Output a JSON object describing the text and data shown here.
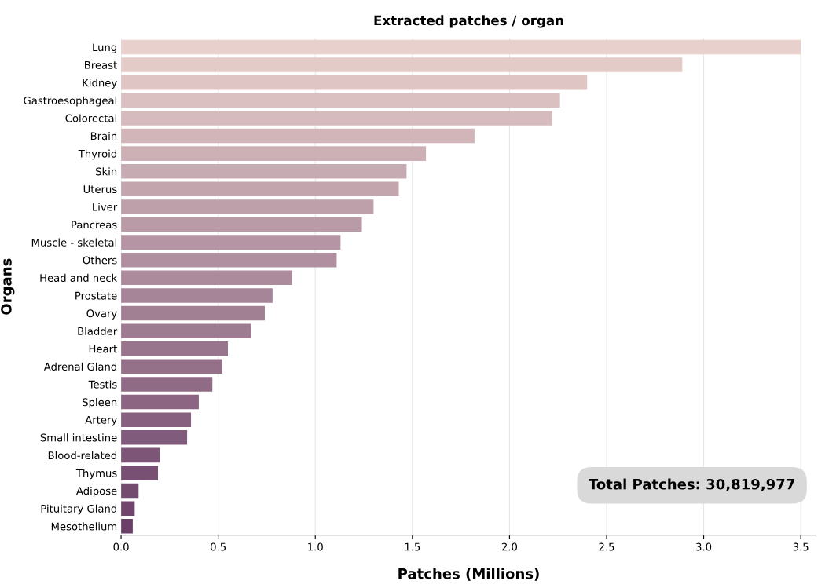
{
  "chart_data": {
    "type": "bar",
    "orientation": "horizontal",
    "title": "Extracted patches / organ",
    "xlabel": "Patches (Millions)",
    "ylabel": "Organs",
    "categories": [
      "Lung",
      "Breast",
      "Kidney",
      "Gastroesophageal",
      "Colorectal",
      "Brain",
      "Thyroid",
      "Skin",
      "Uterus",
      "Liver",
      "Pancreas",
      "Muscle - skeletal",
      "Others",
      "Head and neck",
      "Prostate",
      "Ovary",
      "Bladder",
      "Heart",
      "Adrenal Gland",
      "Testis",
      "Spleen",
      "Artery",
      "Small intestine",
      "Blood-related",
      "Thymus",
      "Adipose",
      "Pituitary Gland",
      "Mesothelium"
    ],
    "values": [
      3.5,
      2.89,
      2.4,
      2.26,
      2.22,
      1.82,
      1.57,
      1.47,
      1.43,
      1.3,
      1.24,
      1.13,
      1.11,
      0.88,
      0.78,
      0.74,
      0.67,
      0.55,
      0.52,
      0.47,
      0.4,
      0.36,
      0.34,
      0.2,
      0.19,
      0.09,
      0.07,
      0.06
    ],
    "colors": [
      "#e8d0cc",
      "#e3cbc8",
      "#dfc5c4",
      "#dac0c1",
      "#d5bbbd",
      "#d1b5b9",
      "#ccb0b6",
      "#c7abb2",
      "#c3a5ae",
      "#bea0ab",
      "#b99ba7",
      "#b595a3",
      "#b090a0",
      "#ab8b9c",
      "#a78598",
      "#a28094",
      "#9d7b91",
      "#99758d",
      "#947089",
      "#8f6b86",
      "#8b6582",
      "#86607e",
      "#815b7b",
      "#7d5577",
      "#785073",
      "#734b6f",
      "#6f456c",
      "#6a4068"
    ],
    "xlim": [
      0,
      3.58
    ],
    "xticks": [
      {
        "value": 0,
        "label": "0.0"
      },
      {
        "value": 0.5,
        "label": "0.5"
      },
      {
        "value": 1,
        "label": "1.0"
      },
      {
        "value": 1.5,
        "label": "1.5"
      },
      {
        "value": 2,
        "label": "2.0"
      },
      {
        "value": 2.5,
        "label": "2.5"
      },
      {
        "value": 3,
        "label": "3.0"
      },
      {
        "value": 3.5,
        "label": "3.5"
      }
    ],
    "grid": "x",
    "annotations": [
      "Total Patches: 30,819,977"
    ]
  }
}
